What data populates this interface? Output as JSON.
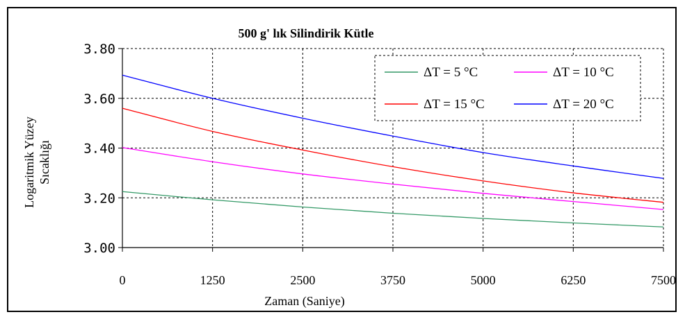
{
  "chart_data": {
    "type": "line",
    "title": "500 g' lık Silindirik Kütle",
    "xlabel": "Zaman (Saniye)",
    "ylabel_lines": [
      "Logaritmik Yüzey",
      "Sıcaklığı"
    ],
    "xlim": [
      0,
      7500
    ],
    "ylim": [
      3.0,
      3.8
    ],
    "x_ticks": [
      "0",
      "1250",
      "2500",
      "3750",
      "5000",
      "6250",
      "7500"
    ],
    "y_ticks": [
      "3.00",
      "3.20",
      "3.40",
      "3.60",
      "3.80"
    ],
    "grid": true,
    "legend_position": "top-right",
    "x": [
      0,
      1250,
      2500,
      3750,
      5000,
      6250,
      7500
    ],
    "series": [
      {
        "name": "ΔT = 5 °C",
        "color": "#339966",
        "values": [
          3.225,
          3.192,
          3.163,
          3.138,
          3.117,
          3.099,
          3.083
        ]
      },
      {
        "name": "ΔT = 10 °C",
        "color": "#ff00ff",
        "values": [
          3.402,
          3.345,
          3.296,
          3.255,
          3.218,
          3.185,
          3.153
        ]
      },
      {
        "name": "ΔT = 15 °C",
        "color": "#ff0000",
        "values": [
          3.56,
          3.467,
          3.392,
          3.325,
          3.268,
          3.22,
          3.182
        ]
      },
      {
        "name": "ΔT = 20 °C",
        "color": "#0000ff",
        "values": [
          3.693,
          3.6,
          3.52,
          3.448,
          3.382,
          3.328,
          3.278
        ]
      }
    ]
  }
}
